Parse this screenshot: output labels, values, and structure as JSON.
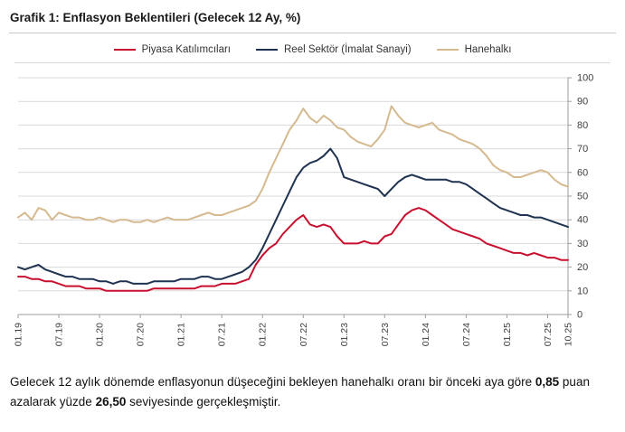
{
  "title": "Grafik 1: Enflasyon Beklentileri (Gelecek 12 Ay, %)",
  "chart_data": {
    "type": "line",
    "title": "Grafik 1: Enflasyon Beklentileri (Gelecek 12 Ay, %)",
    "xlabel": "",
    "ylabel": "",
    "ylim": [
      0,
      100
    ],
    "y_ticks": [
      0,
      10,
      20,
      30,
      40,
      50,
      60,
      70,
      80,
      90,
      100
    ],
    "grid": "horizontal",
    "legend_position": "top",
    "grid_color": "#d9d9d9",
    "axis_color": "#9d9d9d",
    "tick_label_color": "#404040",
    "x_tick_labels": [
      "01.19",
      "07.19",
      "01.20",
      "07.20",
      "01.21",
      "07.21",
      "01.22",
      "07.22",
      "01.23",
      "07.23",
      "01.24",
      "07.24",
      "01.25",
      "07.25",
      "10.25"
    ],
    "x": [
      "01.19",
      "02.19",
      "03.19",
      "04.19",
      "05.19",
      "06.19",
      "07.19",
      "08.19",
      "09.19",
      "10.19",
      "11.19",
      "12.19",
      "01.20",
      "02.20",
      "03.20",
      "04.20",
      "05.20",
      "06.20",
      "07.20",
      "08.20",
      "09.20",
      "10.20",
      "11.20",
      "12.20",
      "01.21",
      "02.21",
      "03.21",
      "04.21",
      "05.21",
      "06.21",
      "07.21",
      "08.21",
      "09.21",
      "10.21",
      "11.21",
      "12.21",
      "01.22",
      "02.22",
      "03.22",
      "04.22",
      "05.22",
      "06.22",
      "07.22",
      "08.22",
      "09.22",
      "10.22",
      "11.22",
      "12.22",
      "01.23",
      "02.23",
      "03.23",
      "04.23",
      "05.23",
      "06.23",
      "07.23",
      "08.23",
      "09.23",
      "10.23",
      "11.23",
      "12.23",
      "01.24",
      "02.24",
      "03.24",
      "04.24",
      "05.24",
      "06.24",
      "07.24",
      "08.24",
      "09.24",
      "10.24",
      "11.24",
      "12.24",
      "01.25",
      "02.25",
      "03.25",
      "04.25",
      "05.25",
      "06.25",
      "07.25",
      "08.25",
      "09.25",
      "10.25"
    ],
    "series": [
      {
        "name": "Piyasa Katılımcıları",
        "color": "#c8102e",
        "values": [
          16,
          16,
          15,
          15,
          14,
          14,
          13,
          12,
          12,
          12,
          11,
          11,
          11,
          10,
          10,
          10,
          10,
          10,
          10,
          10,
          11,
          11,
          11,
          11,
          11,
          11,
          11,
          12,
          12,
          12,
          13,
          13,
          13,
          14,
          15,
          21,
          25,
          28,
          30,
          34,
          37,
          40,
          42,
          38,
          37,
          38,
          37,
          33,
          30,
          30,
          30,
          31,
          30,
          30,
          33,
          34,
          38,
          42,
          44,
          45,
          44,
          42,
          40,
          38,
          36,
          35,
          34,
          33,
          32,
          30,
          29,
          28,
          27,
          26,
          26,
          25,
          26,
          25,
          24,
          24,
          23,
          23
        ]
      },
      {
        "name": "Reel Sektör (İmalat Sanayi)",
        "color": "#1f3250",
        "values": [
          20,
          19,
          20,
          21,
          19,
          18,
          17,
          16,
          16,
          15,
          15,
          15,
          14,
          14,
          13,
          14,
          14,
          13,
          13,
          13,
          14,
          14,
          14,
          14,
          15,
          15,
          15,
          16,
          16,
          15,
          15,
          16,
          17,
          18,
          20,
          23,
          28,
          34,
          40,
          46,
          52,
          58,
          62,
          64,
          65,
          67,
          70,
          66,
          58,
          57,
          56,
          55,
          54,
          53,
          50,
          53,
          56,
          58,
          59,
          58,
          57,
          57,
          57,
          57,
          56,
          56,
          55,
          53,
          51,
          49,
          47,
          45,
          44,
          43,
          42,
          42,
          41,
          41,
          40,
          39,
          38,
          37
        ]
      },
      {
        "name": "Hanehalkı",
        "color": "#d5ba90",
        "values": [
          41,
          43,
          40,
          45,
          44,
          40,
          43,
          42,
          41,
          41,
          40,
          40,
          41,
          40,
          39,
          40,
          40,
          39,
          39,
          40,
          39,
          40,
          41,
          40,
          40,
          40,
          41,
          42,
          43,
          42,
          42,
          43,
          44,
          45,
          46,
          48,
          53,
          60,
          66,
          72,
          78,
          82,
          87,
          83,
          81,
          84,
          82,
          79,
          78,
          75,
          73,
          72,
          71,
          74,
          78,
          88,
          84,
          81,
          80,
          79,
          80,
          81,
          78,
          77,
          76,
          74,
          73,
          72,
          70,
          67,
          63,
          61,
          60,
          58,
          58,
          59,
          60,
          61,
          60,
          57,
          55,
          54
        ]
      }
    ]
  },
  "footnote": {
    "part1": "Gelecek 12 aylık dönemde enflasyonun düşeceğini bekleyen hanehalkı oranı bir önceki aya göre ",
    "bold1": "0,85",
    "part2": " puan azalarak yüzde ",
    "bold2": "26,50",
    "part3": " seviyesinde gerçekleşmiştir."
  }
}
